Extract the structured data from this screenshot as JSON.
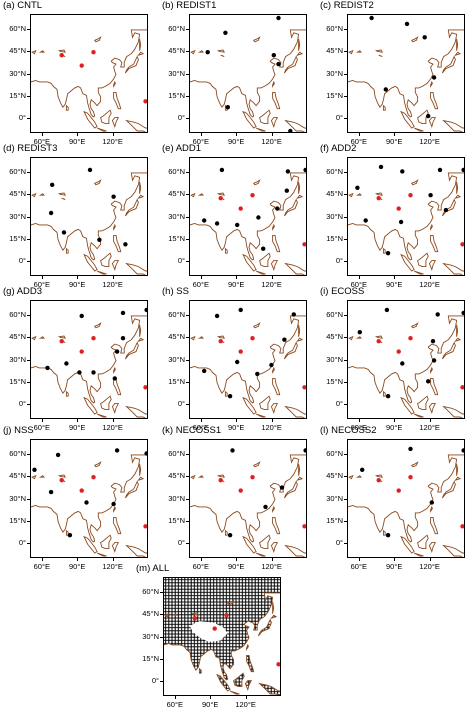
{
  "figure": {
    "lat_ticks": [
      {
        "value": 0,
        "label": "0°"
      },
      {
        "value": 15,
        "label": "15°N"
      },
      {
        "value": 30,
        "label": "30°N"
      },
      {
        "value": 45,
        "label": "45°N"
      },
      {
        "value": 60,
        "label": "60°N"
      }
    ],
    "lon_ticks": [
      {
        "value": 60,
        "label": "60°E"
      },
      {
        "value": 90,
        "label": "90°E"
      },
      {
        "value": 120,
        "label": "120°E"
      }
    ],
    "map_extent": {
      "lon": [
        50,
        150
      ],
      "lat": [
        -10,
        70
      ]
    },
    "colors": {
      "coastline": "#8b4a1e",
      "red_stations": "#e02020",
      "black_stations": "#000000",
      "hatch": "#000000"
    },
    "panels": [
      {
        "id": "a",
        "title": "(a) CNTL",
        "red": [
          [
            76,
            43
          ],
          [
            103,
            45
          ],
          [
            93,
            36
          ],
          [
            147,
            12
          ]
        ],
        "black": []
      },
      {
        "id": "b",
        "title": "(b) REDIST1",
        "red": [],
        "black": [
          [
            125,
            68
          ],
          [
            80,
            58
          ],
          [
            65,
            45
          ],
          [
            121,
            43
          ],
          [
            125,
            37
          ],
          [
            82,
            8
          ],
          [
            135,
            -8
          ]
        ]
      },
      {
        "id": "c",
        "title": "(c) REDIST2",
        "red": [],
        "black": [
          [
            70,
            68
          ],
          [
            100,
            64
          ],
          [
            115,
            55
          ],
          [
            82,
            20
          ],
          [
            123,
            28
          ],
          [
            118,
            2
          ]
        ]
      },
      {
        "id": "d",
        "title": "(d) REDIST3",
        "red": [],
        "black": [
          [
            100,
            62
          ],
          [
            68,
            52
          ],
          [
            120,
            44
          ],
          [
            67,
            33
          ],
          [
            78,
            20
          ],
          [
            108,
            15
          ],
          [
            130,
            12
          ]
        ]
      },
      {
        "id": "e",
        "title": "(e) ADD1",
        "red": [
          [
            76,
            43
          ],
          [
            103,
            45
          ],
          [
            93,
            36
          ],
          [
            147,
            12
          ]
        ],
        "black": [
          [
            77,
            62
          ],
          [
            133,
            61
          ],
          [
            148,
            62
          ],
          [
            132,
            48
          ],
          [
            62,
            28
          ],
          [
            73,
            26
          ],
          [
            90,
            25
          ],
          [
            108,
            30
          ],
          [
            124,
            36
          ],
          [
            112,
            9
          ]
        ]
      },
      {
        "id": "f",
        "title": "(f) ADD2",
        "red": [
          [
            76,
            43
          ],
          [
            103,
            45
          ],
          [
            93,
            36
          ],
          [
            147,
            12
          ]
        ],
        "black": [
          [
            78,
            64
          ],
          [
            96,
            61
          ],
          [
            128,
            62
          ],
          [
            148,
            62
          ],
          [
            58,
            50
          ],
          [
            120,
            45
          ],
          [
            133,
            35
          ],
          [
            65,
            28
          ],
          [
            95,
            27
          ],
          [
            84,
            6
          ]
        ]
      },
      {
        "id": "g",
        "title": "(g) ADD3",
        "red": [
          [
            76,
            43
          ],
          [
            103,
            45
          ],
          [
            93,
            36
          ],
          [
            147,
            12
          ]
        ],
        "black": [
          [
            93,
            60
          ],
          [
            128,
            62
          ],
          [
            148,
            64
          ],
          [
            128,
            45
          ],
          [
            123,
            36
          ],
          [
            64,
            25
          ],
          [
            80,
            28
          ],
          [
            91,
            22
          ],
          [
            103,
            22
          ],
          [
            121,
            18
          ]
        ]
      },
      {
        "id": "h",
        "title": "(h) SS",
        "red": [
          [
            76,
            43
          ],
          [
            103,
            45
          ],
          [
            93,
            36
          ],
          [
            147,
            12
          ]
        ],
        "black": [
          [
            73,
            60
          ],
          [
            93,
            64
          ],
          [
            138,
            61
          ],
          [
            130,
            44
          ],
          [
            62,
            23
          ],
          [
            90,
            29
          ],
          [
            107,
            21
          ],
          [
            119,
            27
          ],
          [
            84,
            6
          ]
        ]
      },
      {
        "id": "i",
        "title": "(i) ECOSS",
        "red": [
          [
            76,
            43
          ],
          [
            103,
            45
          ],
          [
            93,
            36
          ],
          [
            147,
            12
          ]
        ],
        "black": [
          [
            83,
            64
          ],
          [
            126,
            61
          ],
          [
            148,
            62
          ],
          [
            60,
            49
          ],
          [
            122,
            43
          ],
          [
            123,
            30
          ],
          [
            118,
            16
          ],
          [
            96,
            28
          ],
          [
            84,
            6
          ]
        ]
      },
      {
        "id": "j",
        "title": "(j) NSS",
        "red": [
          [
            76,
            43
          ],
          [
            103,
            45
          ],
          [
            93,
            36
          ],
          [
            147,
            12
          ]
        ],
        "black": [
          [
            73,
            60
          ],
          [
            123,
            63
          ],
          [
            148,
            61
          ],
          [
            53,
            50
          ],
          [
            67,
            35
          ],
          [
            97,
            28
          ],
          [
            120,
            27
          ],
          [
            83,
            6
          ]
        ]
      },
      {
        "id": "k",
        "title": "(k) NECOSS1",
        "red": [
          [
            76,
            43
          ],
          [
            103,
            45
          ],
          [
            93,
            36
          ],
          [
            147,
            12
          ]
        ],
        "black": [
          [
            86,
            63
          ],
          [
            148,
            63
          ],
          [
            128,
            38
          ],
          [
            114,
            25
          ],
          [
            84,
            6
          ]
        ]
      },
      {
        "id": "l",
        "title": "(l) NECOSS2",
        "red": [
          [
            76,
            43
          ],
          [
            103,
            45
          ],
          [
            93,
            36
          ],
          [
            147,
            12
          ]
        ],
        "black": [
          [
            103,
            64
          ],
          [
            148,
            63
          ],
          [
            62,
            50
          ],
          [
            121,
            28
          ],
          [
            84,
            6
          ]
        ]
      },
      {
        "id": "m",
        "title": "(m) ALL",
        "red": [
          [
            76,
            43
          ],
          [
            103,
            45
          ],
          [
            93,
            36
          ],
          [
            147,
            12
          ]
        ],
        "black": [],
        "hatched": true
      }
    ]
  }
}
